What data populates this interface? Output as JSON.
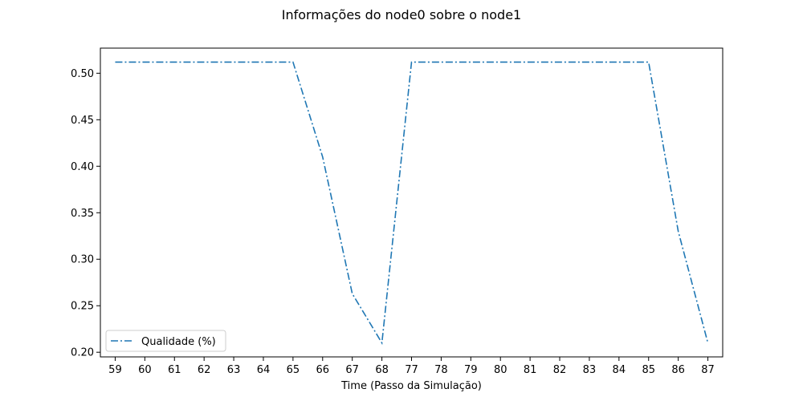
{
  "chart_data": {
    "type": "line",
    "title": "Informações do node0 sobre o node1",
    "xlabel": "Time (Passo da Simulação)",
    "ylabel": "",
    "categories": [
      "59",
      "60",
      "61",
      "62",
      "63",
      "64",
      "65",
      "66",
      "67",
      "68",
      "77",
      "78",
      "79",
      "80",
      "81",
      "82",
      "83",
      "84",
      "85",
      "86",
      "87"
    ],
    "series": [
      {
        "name": "Qualidade (%)",
        "values": [
          0.512,
          0.512,
          0.512,
          0.512,
          0.512,
          0.512,
          0.512,
          0.41,
          0.263,
          0.21,
          0.512,
          0.512,
          0.512,
          0.512,
          0.512,
          0.512,
          0.512,
          0.512,
          0.512,
          0.33,
          0.21
        ],
        "color": "#1f77b4",
        "linestyle": "dashdot"
      }
    ],
    "ylim": [
      0.195,
      0.527
    ],
    "yticks": [
      0.2,
      0.25,
      0.3,
      0.35,
      0.4,
      0.45,
      0.5
    ],
    "ytick_labels": [
      "0.20",
      "0.25",
      "0.30",
      "0.35",
      "0.40",
      "0.45",
      "0.50"
    ],
    "grid": false,
    "legend_position": "lower-left"
  }
}
